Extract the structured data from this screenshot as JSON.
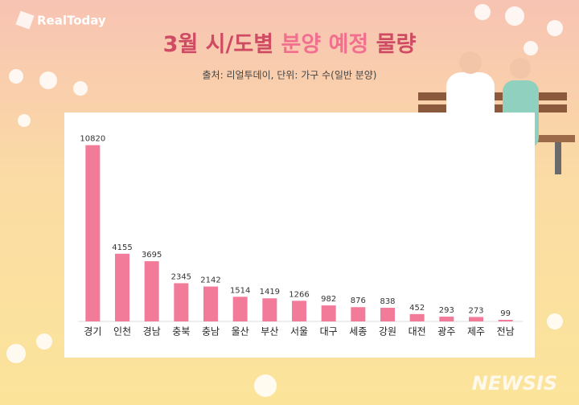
{
  "brand": "RealToday",
  "watermark": "NEWSIS",
  "chart_data": {
    "type": "bar",
    "title_parts": [
      "3월 시/도별",
      "분양 예정",
      "물량"
    ],
    "subtitle": "출처: 리얼투데이, 단위: 가구 수(일반 분양)",
    "categories": [
      "경기",
      "인천",
      "경남",
      "충북",
      "충남",
      "울산",
      "부산",
      "서울",
      "대구",
      "세종",
      "강원",
      "대전",
      "광주",
      "제주",
      "전남"
    ],
    "values": [
      10820,
      4155,
      3695,
      2345,
      2142,
      1514,
      1419,
      1266,
      982,
      876,
      838,
      452,
      293,
      273,
      99
    ],
    "color": "#f27b99",
    "ylim": [
      0,
      11000
    ]
  }
}
